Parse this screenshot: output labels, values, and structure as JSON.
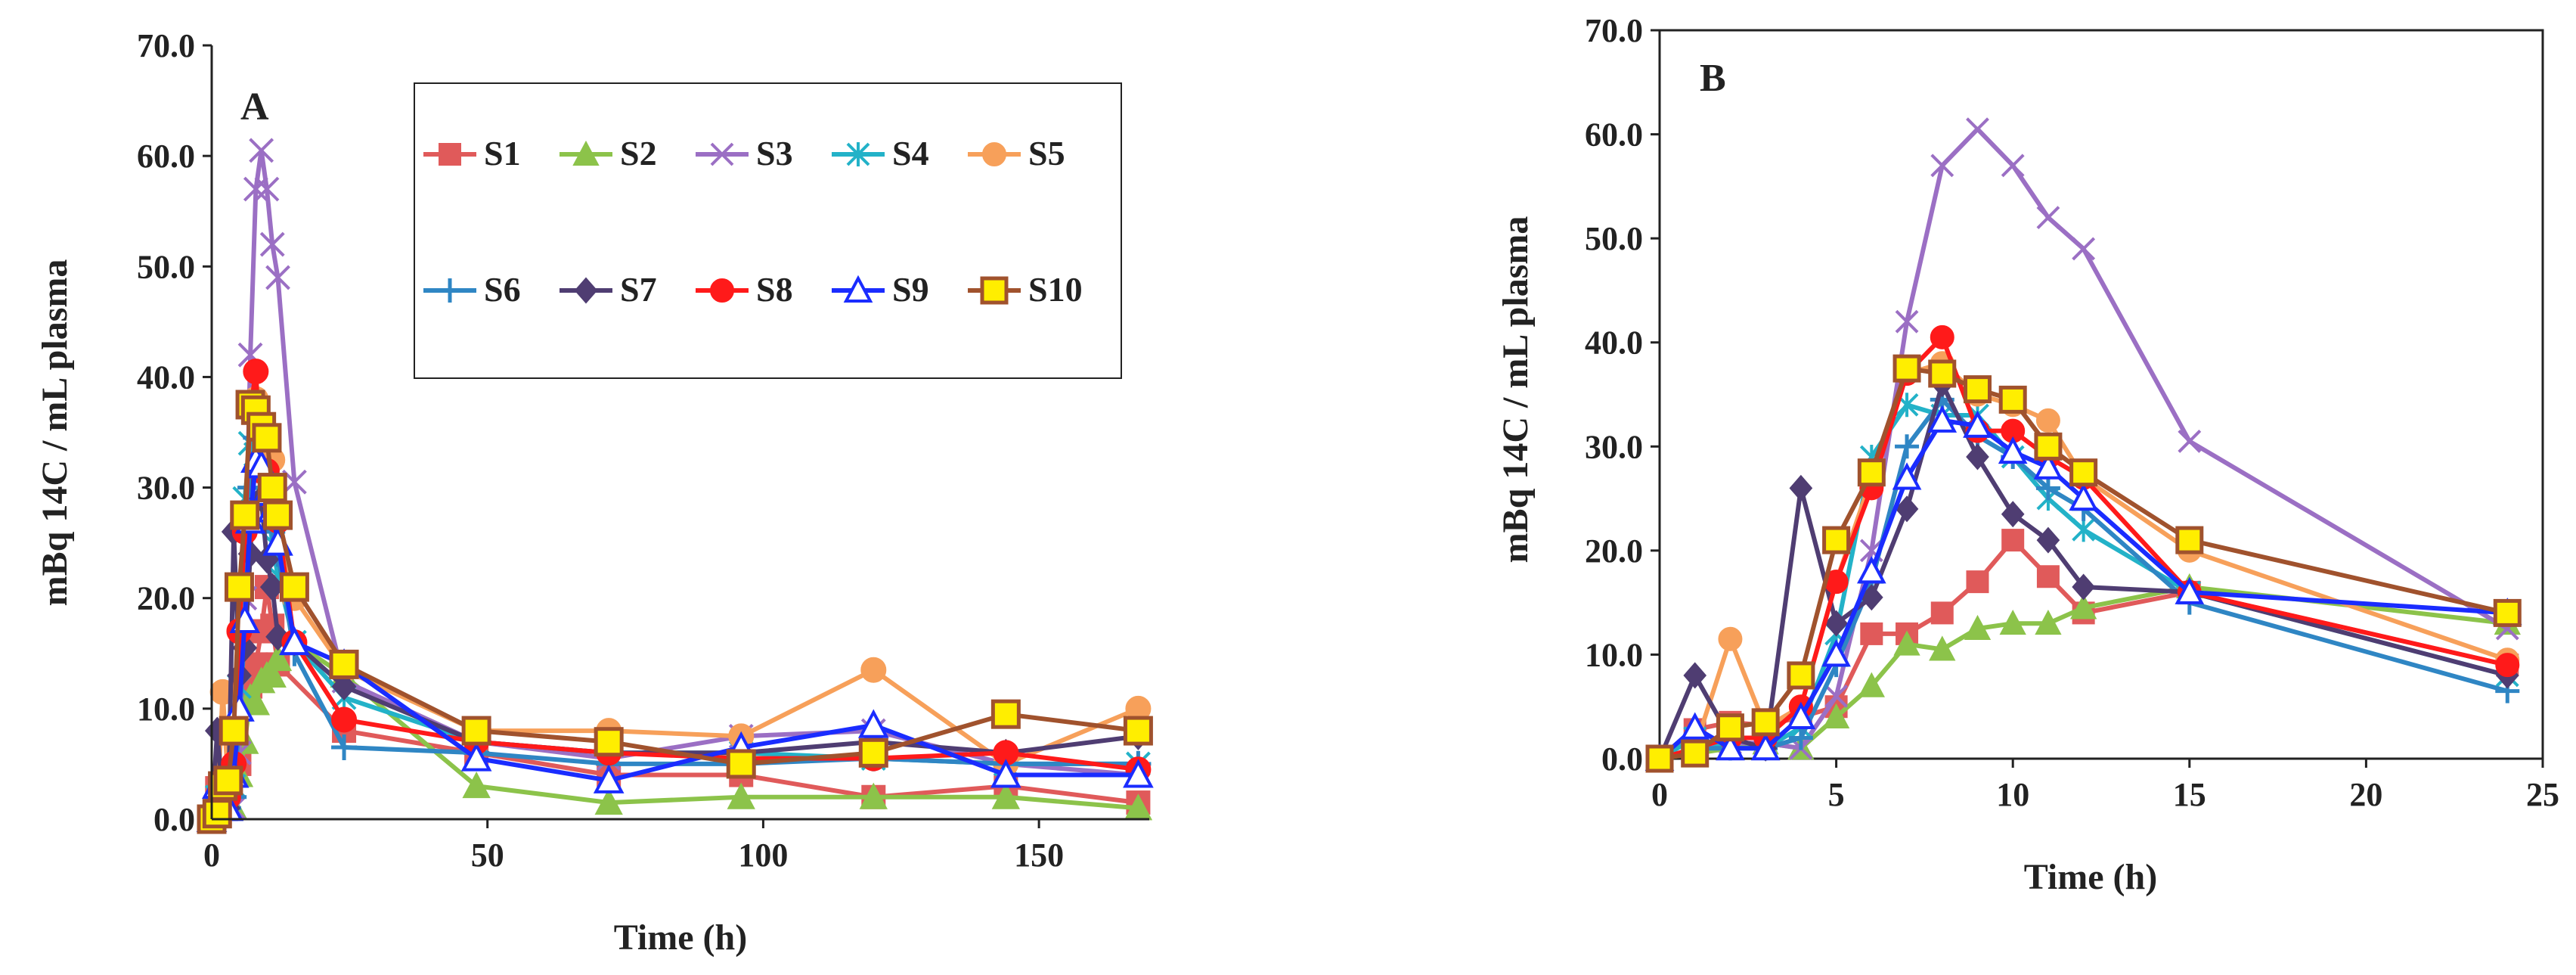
{
  "colors": {
    "S1": "#e05a5a",
    "S2": "#8cc34a",
    "S3": "#9b6fc4",
    "S4": "#23b2c8",
    "S5": "#f7a05a",
    "S6": "#2f86c4",
    "S7": "#4f3d72",
    "S8": "#ff1a1a",
    "S9": "#1a2cff",
    "S10": "#a0522d"
  },
  "chart_data": [
    {
      "type": "line",
      "panel": "A",
      "ylabel": "mBq 14C / mL plasma",
      "xlabel": "Time (h)",
      "xlim": [
        0,
        170
      ],
      "ylim": [
        0,
        70
      ],
      "xticks": [
        "0",
        "50",
        "100",
        "150"
      ],
      "yticks": [
        "0.0",
        "10.0",
        "20.0",
        "30.0",
        "40.0",
        "50.0",
        "60.0",
        "70.0"
      ],
      "legend": [
        "S1",
        "S2",
        "S3",
        "S4",
        "S5",
        "S6",
        "S7",
        "S8",
        "S9",
        "S10"
      ],
      "legend_position": "top-right",
      "series": [
        {
          "name": "S1",
          "marker": "square",
          "x": [
            0,
            1,
            2,
            3,
            4,
            5,
            6,
            7,
            8,
            9,
            10,
            11,
            12,
            24,
            48,
            72,
            96,
            120,
            144,
            168
          ],
          "y": [
            0,
            2.8,
            3.5,
            3.2,
            4,
            5,
            12,
            12,
            14,
            17,
            21,
            17.5,
            14,
            8,
            6,
            4,
            4,
            2,
            3,
            1.5
          ]
        },
        {
          "name": "S2",
          "marker": "triangle",
          "x": [
            0,
            1,
            2,
            3,
            4,
            5,
            6,
            7,
            8,
            9,
            10,
            11,
            12,
            15,
            24,
            48,
            72,
            96,
            120,
            144,
            168
          ],
          "y": [
            0,
            0.5,
            1,
            1.5,
            1,
            4,
            7,
            11,
            10.5,
            12.5,
            13,
            13,
            14.5,
            16,
            13,
            3,
            1.5,
            2,
            2,
            2,
            1
          ]
        },
        {
          "name": "S3",
          "marker": "x",
          "x": [
            0,
            1,
            2,
            3,
            4,
            5,
            6,
            7,
            8,
            9,
            10,
            11,
            12,
            15,
            24,
            48,
            72,
            96,
            120,
            144,
            168
          ],
          "y": [
            0,
            1,
            1.5,
            1.5,
            1,
            6,
            20,
            42,
            57,
            60.5,
            57,
            52,
            49,
            30.5,
            12.5,
            7,
            5.5,
            7.5,
            8,
            5,
            4
          ]
        },
        {
          "name": "S4",
          "marker": "asterisk",
          "x": [
            0,
            1,
            2,
            3,
            4,
            5,
            6,
            7,
            8,
            9,
            10,
            11,
            12,
            15,
            24,
            48,
            72,
            96,
            120,
            144,
            168
          ],
          "y": [
            0,
            2,
            1,
            1,
            3,
            12,
            29,
            34,
            33,
            33,
            29,
            25,
            22,
            16,
            11,
            7,
            6,
            6,
            5.5,
            5,
            5
          ]
        },
        {
          "name": "S5",
          "marker": "circle",
          "x": [
            0,
            1,
            2,
            3,
            4,
            5,
            6,
            7,
            8,
            9,
            10,
            11,
            12,
            15,
            24,
            48,
            72,
            96,
            120,
            144,
            168
          ],
          "y": [
            0,
            1,
            11.5,
            3,
            5,
            17,
            27,
            37,
            38,
            35,
            34,
            32.5,
            27,
            20,
            13.5,
            8,
            8,
            7.5,
            13.5,
            5,
            10
          ]
        },
        {
          "name": "S6",
          "marker": "plus",
          "x": [
            0,
            1,
            2,
            3,
            4,
            5,
            6,
            7,
            8,
            9,
            10,
            11,
            12,
            15,
            24,
            48,
            72,
            96,
            120,
            144,
            168
          ],
          "y": [
            0,
            1,
            1,
            1,
            2,
            9,
            17,
            30,
            34.5,
            31,
            29,
            26,
            24,
            15,
            6.5,
            6,
            5,
            5,
            5.5,
            5,
            5
          ]
        },
        {
          "name": "S7",
          "marker": "diamond",
          "x": [
            0,
            1,
            2,
            3,
            4,
            5,
            6,
            7,
            8,
            9,
            10,
            11,
            12,
            15,
            24,
            48,
            72,
            96,
            120,
            144,
            168
          ],
          "y": [
            0,
            8,
            2,
            1,
            26,
            13,
            15.5,
            24,
            36,
            29,
            23.5,
            21,
            16.5,
            16,
            12,
            7,
            6,
            6,
            7,
            6,
            7.5
          ]
        },
        {
          "name": "S8",
          "marker": "circle",
          "x": [
            0,
            1,
            2,
            3,
            4,
            5,
            6,
            7,
            8,
            9,
            10,
            11,
            12,
            15,
            24,
            48,
            72,
            96,
            120,
            144,
            168
          ],
          "y": [
            0,
            1,
            2,
            2,
            5,
            17,
            26,
            37,
            40.5,
            31.5,
            31.5,
            29,
            27,
            16,
            9,
            7,
            6,
            5.5,
            5.5,
            6,
            4.5
          ]
        },
        {
          "name": "S9",
          "marker": "triangle-open",
          "x": [
            0,
            1,
            2,
            3,
            4,
            5,
            6,
            7,
            8,
            9,
            10,
            11,
            12,
            15,
            24,
            48,
            72,
            96,
            120,
            144,
            168
          ],
          "y": [
            0,
            3,
            1,
            1,
            4,
            10,
            18,
            27,
            32.5,
            32,
            29.5,
            28,
            25,
            16,
            14,
            5.5,
            3.5,
            6.5,
            8.5,
            4,
            4
          ]
        },
        {
          "name": "S10",
          "marker": "square-yellow",
          "x": [
            0,
            1,
            2,
            3,
            4,
            5,
            6,
            7,
            8,
            9,
            10,
            11,
            12,
            15,
            24,
            48,
            72,
            96,
            120,
            144,
            168
          ],
          "y": [
            0,
            0.5,
            3,
            3.5,
            8,
            21,
            27.5,
            37.5,
            37,
            35.5,
            34.5,
            30,
            27.5,
            21,
            14,
            8,
            7,
            5,
            6,
            9.5,
            8
          ]
        }
      ]
    },
    {
      "type": "line",
      "panel": "B",
      "ylabel": "mBq 14C / mL plasma",
      "xlabel": "Time (h)",
      "xlim": [
        0,
        25
      ],
      "ylim": [
        0,
        70
      ],
      "xticks": [
        "0",
        "5",
        "10",
        "15",
        "20",
        "25"
      ],
      "yticks": [
        "0.0",
        "10.0",
        "20.0",
        "30.0",
        "40.0",
        "50.0",
        "60.0",
        "70.0"
      ],
      "series": [
        {
          "name": "S1",
          "marker": "square",
          "x": [
            0,
            1,
            2,
            3,
            4,
            5,
            6,
            7,
            8,
            9,
            10,
            11,
            12,
            15,
            24
          ],
          "y": [
            0,
            2.8,
            3.5,
            3.2,
            4,
            5,
            12,
            12,
            14,
            17,
            21,
            17.5,
            14,
            16,
            9
          ]
        },
        {
          "name": "S2",
          "marker": "triangle",
          "x": [
            0,
            1,
            2,
            3,
            4,
            5,
            6,
            7,
            8,
            9,
            10,
            11,
            12,
            15,
            24
          ],
          "y": [
            0,
            0.5,
            1,
            1.5,
            1,
            4,
            7,
            11,
            10.5,
            12.5,
            13,
            13,
            14.5,
            16.5,
            13
          ]
        },
        {
          "name": "S3",
          "marker": "x",
          "x": [
            0,
            1,
            2,
            3,
            4,
            5,
            6,
            7,
            8,
            9,
            10,
            11,
            12,
            15,
            24
          ],
          "y": [
            0,
            1,
            1.5,
            1.5,
            1,
            6,
            20,
            42,
            57,
            60.5,
            57,
            52,
            49,
            30.5,
            12.5
          ]
        },
        {
          "name": "S4",
          "marker": "asterisk",
          "x": [
            0,
            1,
            2,
            3,
            4,
            5,
            6,
            7,
            8,
            9,
            10,
            11,
            12,
            15,
            24
          ],
          "y": [
            0,
            2,
            1,
            1,
            3,
            12,
            29,
            34,
            33,
            33,
            29,
            25,
            22,
            16,
            8
          ]
        },
        {
          "name": "S5",
          "marker": "circle",
          "x": [
            0,
            1,
            2,
            3,
            4,
            5,
            6,
            7,
            8,
            9,
            10,
            11,
            12,
            15,
            24
          ],
          "y": [
            0,
            1,
            11.5,
            3,
            5,
            17,
            27,
            37,
            38,
            35,
            34,
            32.5,
            27,
            20,
            9.5
          ]
        },
        {
          "name": "S6",
          "marker": "plus",
          "x": [
            0,
            1,
            2,
            3,
            4,
            5,
            6,
            7,
            8,
            9,
            10,
            11,
            12,
            15,
            24
          ],
          "y": [
            0,
            1,
            1,
            1,
            2,
            9,
            17,
            30,
            34.5,
            31,
            29,
            26,
            24,
            15,
            6.5
          ]
        },
        {
          "name": "S7",
          "marker": "diamond",
          "x": [
            0,
            1,
            2,
            3,
            4,
            5,
            6,
            7,
            8,
            9,
            10,
            11,
            12,
            15,
            24
          ],
          "y": [
            0,
            8,
            2,
            1,
            26,
            13,
            15.5,
            24,
            36,
            29,
            23.5,
            21,
            16.5,
            16,
            8
          ]
        },
        {
          "name": "S8",
          "marker": "circle",
          "x": [
            0,
            1,
            2,
            3,
            4,
            5,
            6,
            7,
            8,
            9,
            10,
            11,
            12,
            15,
            24
          ],
          "y": [
            0,
            1,
            2,
            2,
            5,
            17,
            26,
            37,
            40.5,
            31.5,
            31.5,
            29,
            27,
            16,
            9
          ]
        },
        {
          "name": "S9",
          "marker": "triangle-open",
          "x": [
            0,
            1,
            2,
            3,
            4,
            5,
            6,
            7,
            8,
            9,
            10,
            11,
            12,
            15,
            24
          ],
          "y": [
            0,
            3,
            1,
            1,
            4,
            10,
            18,
            27,
            32.5,
            32,
            29.5,
            28,
            25,
            16,
            14
          ]
        },
        {
          "name": "S10",
          "marker": "square-yellow",
          "x": [
            0,
            1,
            2,
            3,
            4,
            5,
            6,
            7,
            8,
            9,
            10,
            11,
            12,
            15,
            24
          ],
          "y": [
            0,
            0.5,
            3,
            3.5,
            8,
            21,
            27.5,
            37.5,
            37,
            35.5,
            34.5,
            30,
            27.5,
            21,
            14
          ]
        }
      ]
    }
  ]
}
